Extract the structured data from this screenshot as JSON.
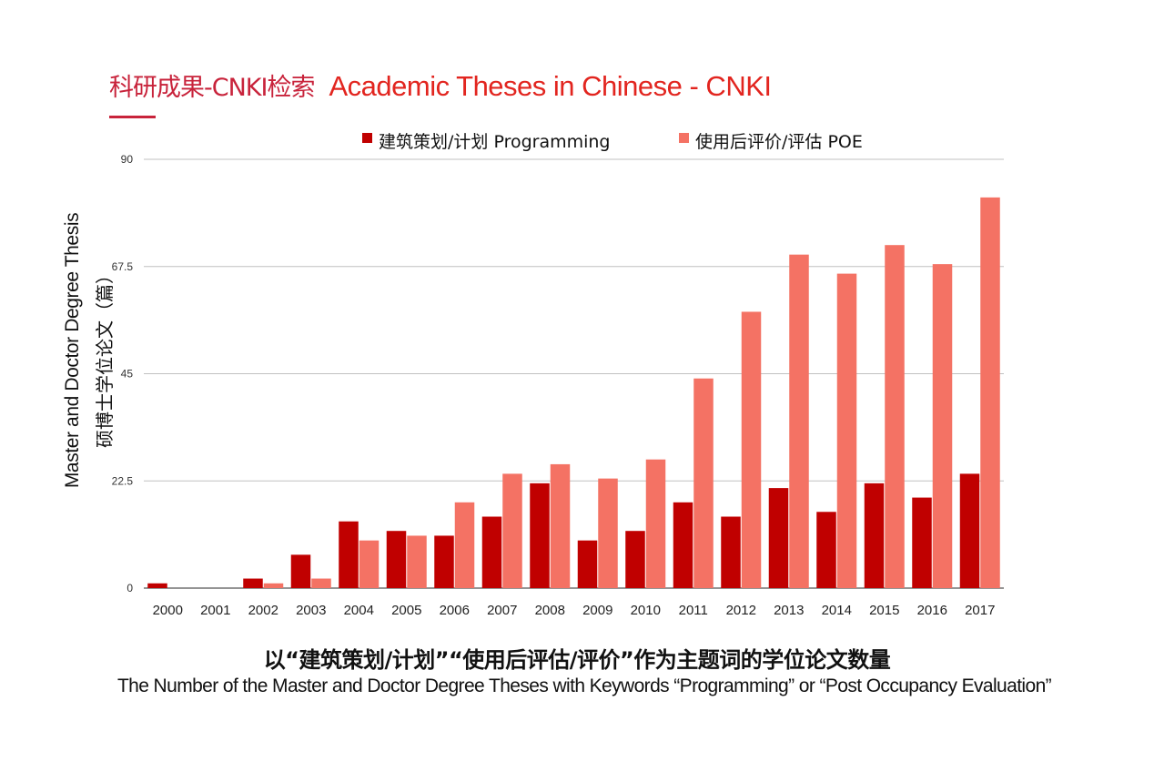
{
  "header": {
    "title_cn": "科研成果-CNKI检索",
    "title_en": "Academic Theses in Chinese - CNKI"
  },
  "colors": {
    "accent": "#c8233b",
    "title_en": "#e2251f",
    "series_programming": "#c00000",
    "series_poe": "#f47264",
    "grid": "#c0c0c0"
  },
  "chart_data": {
    "type": "bar",
    "categories": [
      "2000",
      "2001",
      "2002",
      "2003",
      "2004",
      "2005",
      "2006",
      "2007",
      "2008",
      "2009",
      "2010",
      "2011",
      "2012",
      "2013",
      "2014",
      "2015",
      "2016",
      "2017"
    ],
    "series": [
      {
        "name": "建筑策划/计划  Programming",
        "values": [
          1,
          0,
          2,
          7,
          14,
          12,
          11,
          15,
          22,
          10,
          12,
          18,
          15,
          21,
          16,
          22,
          19,
          24
        ]
      },
      {
        "name": "使用后评价/评估 POE",
        "values": [
          0,
          0,
          1,
          2,
          10,
          11,
          18,
          24,
          26,
          23,
          27,
          44,
          58,
          70,
          66,
          72,
          68,
          82
        ]
      }
    ],
    "ylim": [
      0,
      90
    ],
    "yticks": [
      "0",
      "22.5",
      "45",
      "67.5",
      "90"
    ],
    "ylabel_en": "Master and Doctor Degree Thesis",
    "ylabel_cn": "硕博士学位论文（篇）",
    "legend": "top-center",
    "grid": true
  },
  "caption": {
    "cn": "以“建筑策划/计划”“使用后评估/评价”作为主题词的学位论文数量",
    "en": "The Number of the Master and Doctor Degree Theses with Keywords “Programming” or “Post Occupancy Evaluation”"
  }
}
